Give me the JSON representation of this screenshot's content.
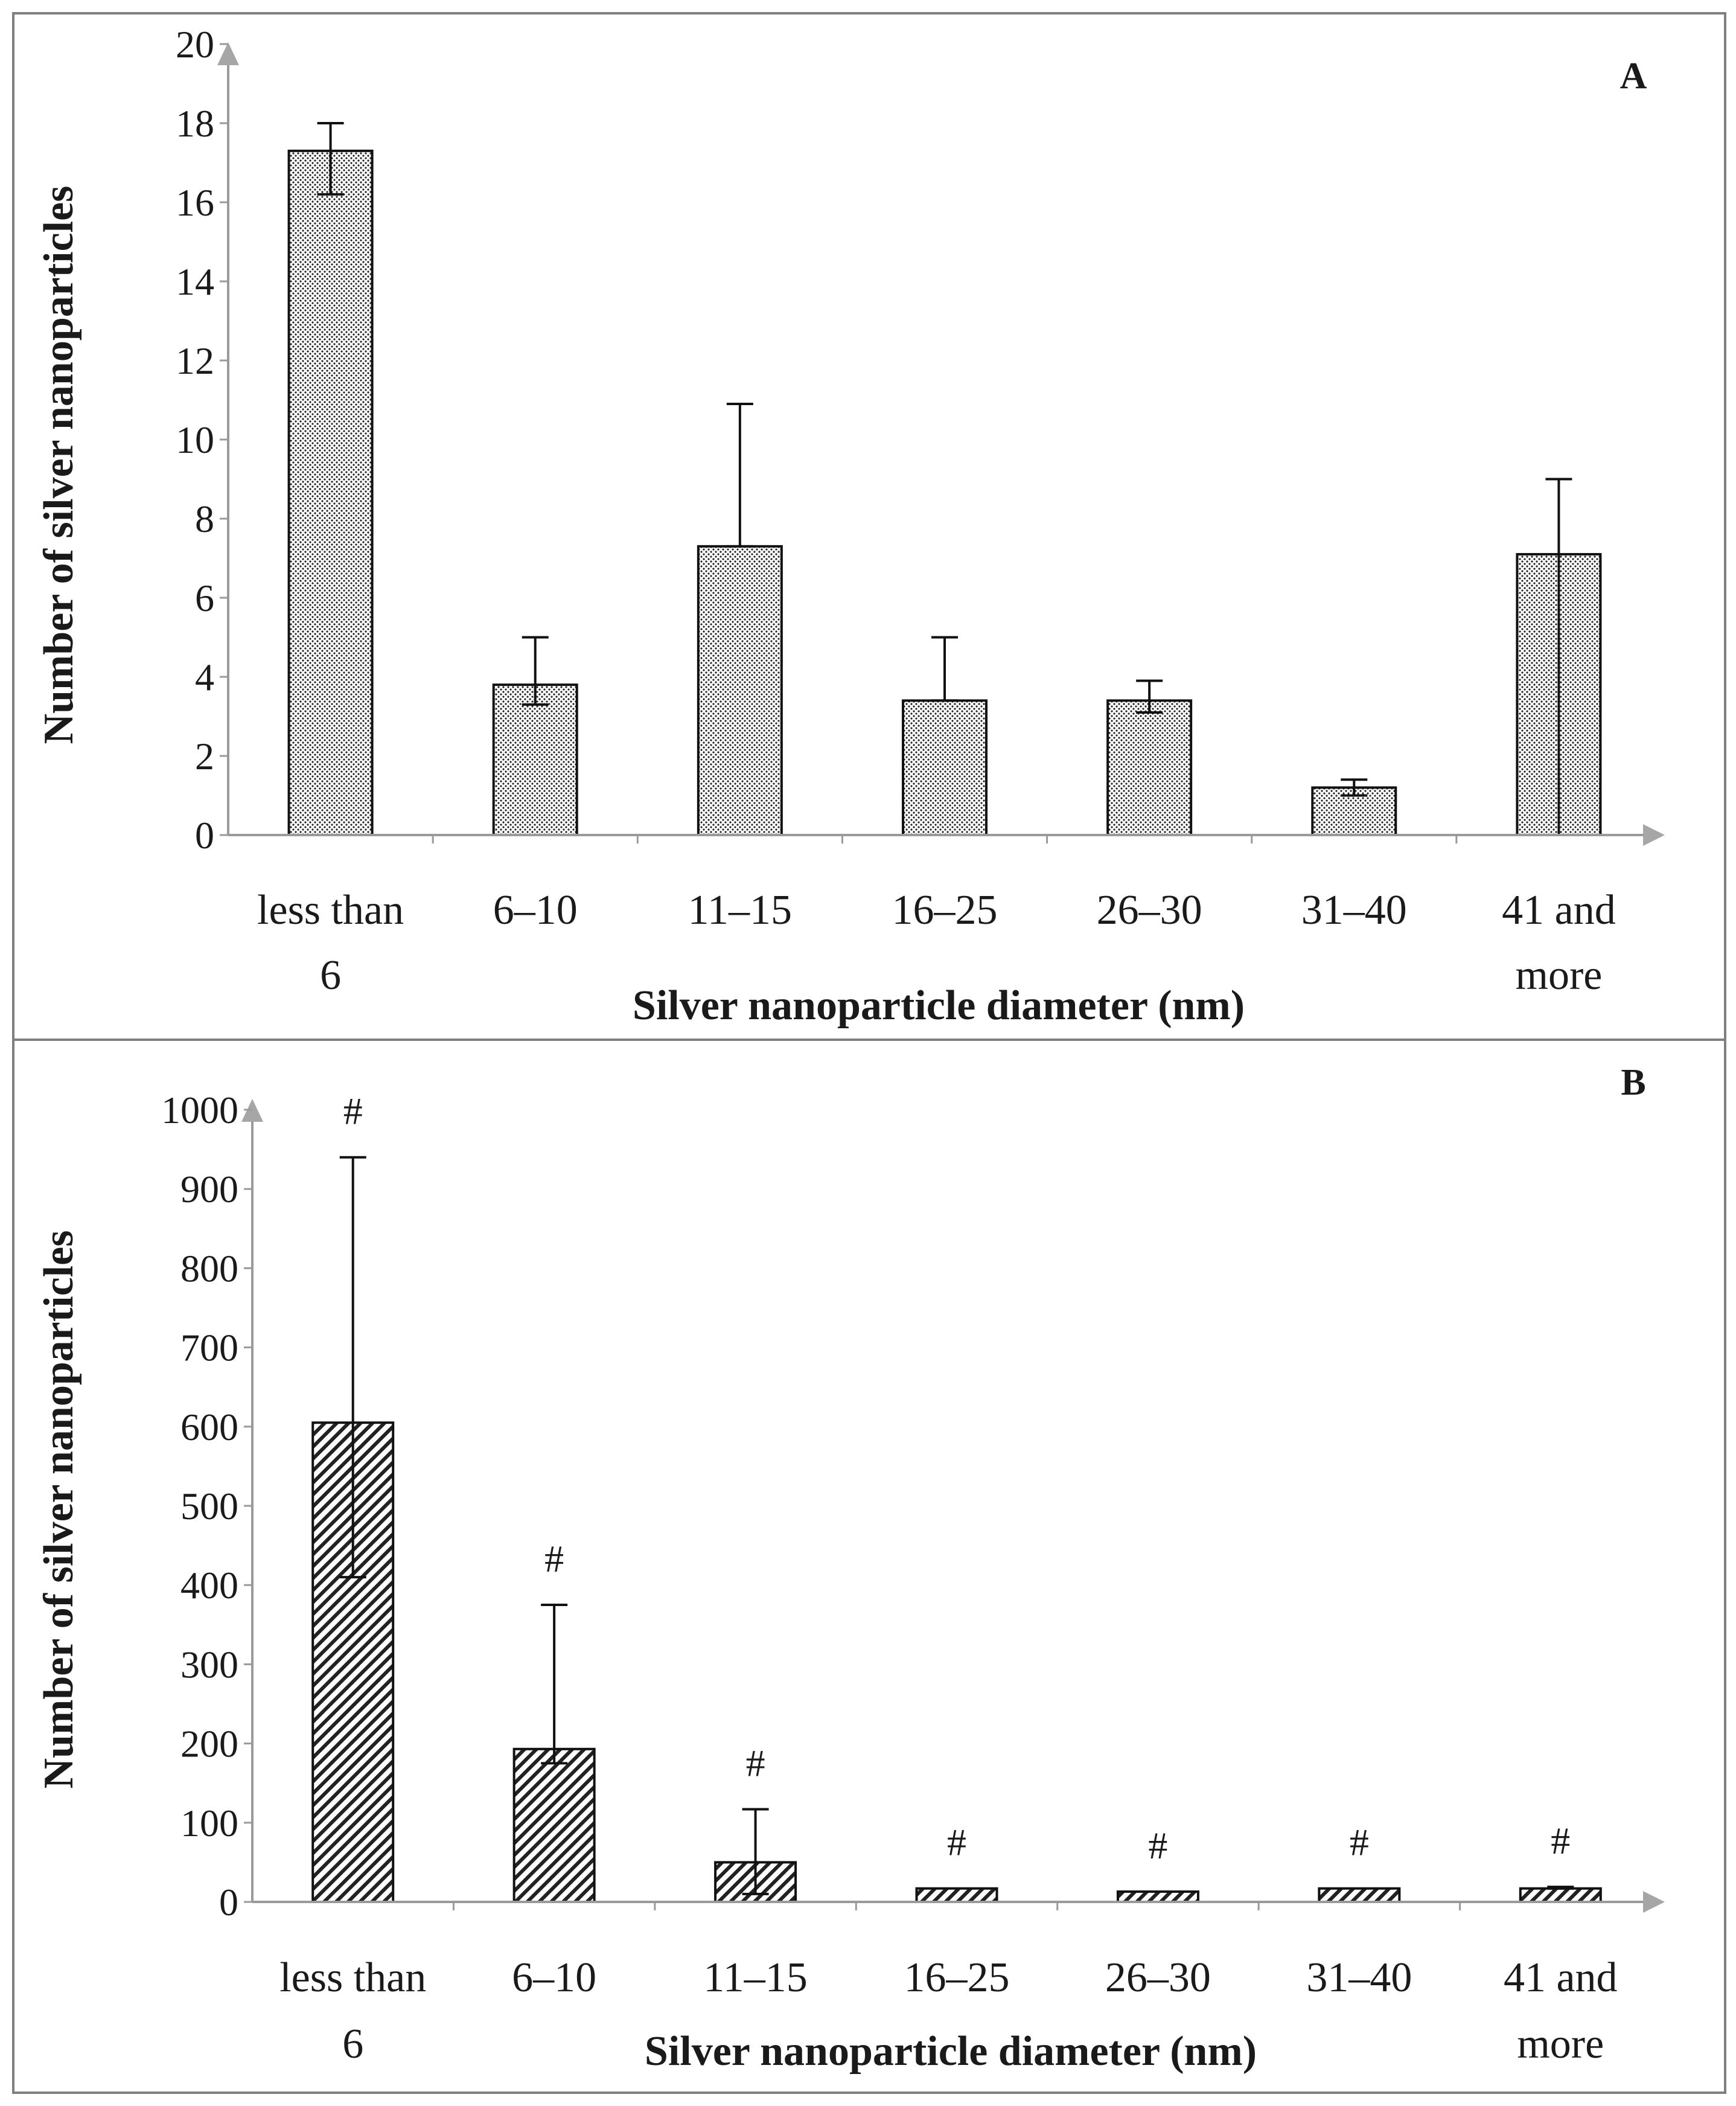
{
  "colors": {
    "frame": "#7f7f7f",
    "axis": "#9a9a9a",
    "arrow": "#a6a6a6",
    "bar_outline": "#111111",
    "bar_fill_pattern": "#222222"
  },
  "chart_data": [
    {
      "type": "bar",
      "panel": "A",
      "pattern": "dots",
      "categories": [
        "less than 6",
        "6–10",
        "11–15",
        "16–25",
        "26–30",
        "31–40",
        "41 and more"
      ],
      "category_lines": [
        [
          "less than",
          "6"
        ],
        [
          "6–10"
        ],
        [
          "11–15"
        ],
        [
          "16–25"
        ],
        [
          "26–30"
        ],
        [
          "31–40"
        ],
        [
          "41 and",
          "more"
        ]
      ],
      "values": [
        17.3,
        3.8,
        7.3,
        3.4,
        3.4,
        1.2,
        7.1
      ],
      "error_upper": [
        18.0,
        5.0,
        10.9,
        5.0,
        3.9,
        1.4,
        9.0
      ],
      "error_lower": [
        16.2,
        3.3,
        7.3,
        3.4,
        3.1,
        1.0,
        0.0
      ],
      "xlabel": "Silver nanoparticle diameter (nm)",
      "ylabel": "Number of silver nanoparticles",
      "ylim": [
        0,
        20
      ],
      "yticks": [
        "0",
        "2",
        "4",
        "6",
        "8",
        "10",
        "12",
        "14",
        "16",
        "18",
        "20"
      ],
      "markers": [
        "",
        "",
        "",
        "",
        "",
        "",
        ""
      ]
    },
    {
      "type": "bar",
      "panel": "B",
      "pattern": "hatch",
      "categories": [
        "less than 6",
        "6–10",
        "11–15",
        "16–25",
        "26–30",
        "31–40",
        "41 and more"
      ],
      "category_lines": [
        [
          "less than",
          "6"
        ],
        [
          "6–10"
        ],
        [
          "11–15"
        ],
        [
          "16–25"
        ],
        [
          "26–30"
        ],
        [
          "31–40"
        ],
        [
          "41 and",
          "more"
        ]
      ],
      "values": [
        605,
        193,
        50,
        17,
        13,
        17,
        17
      ],
      "error_upper": [
        940,
        375,
        117,
        17,
        13,
        17,
        19
      ],
      "error_lower": [
        410,
        175,
        10,
        17,
        13,
        17,
        17
      ],
      "xlabel": "Silver nanoparticle diameter (nm)",
      "ylabel": "Number of silver nanoparticles",
      "ylim": [
        0,
        1000
      ],
      "yticks": [
        "0",
        "100",
        "200",
        "300",
        "400",
        "500",
        "600",
        "700",
        "800",
        "900",
        "1000"
      ],
      "markers": [
        "#",
        "#",
        "#",
        "#",
        "#",
        "#",
        "#"
      ]
    }
  ]
}
